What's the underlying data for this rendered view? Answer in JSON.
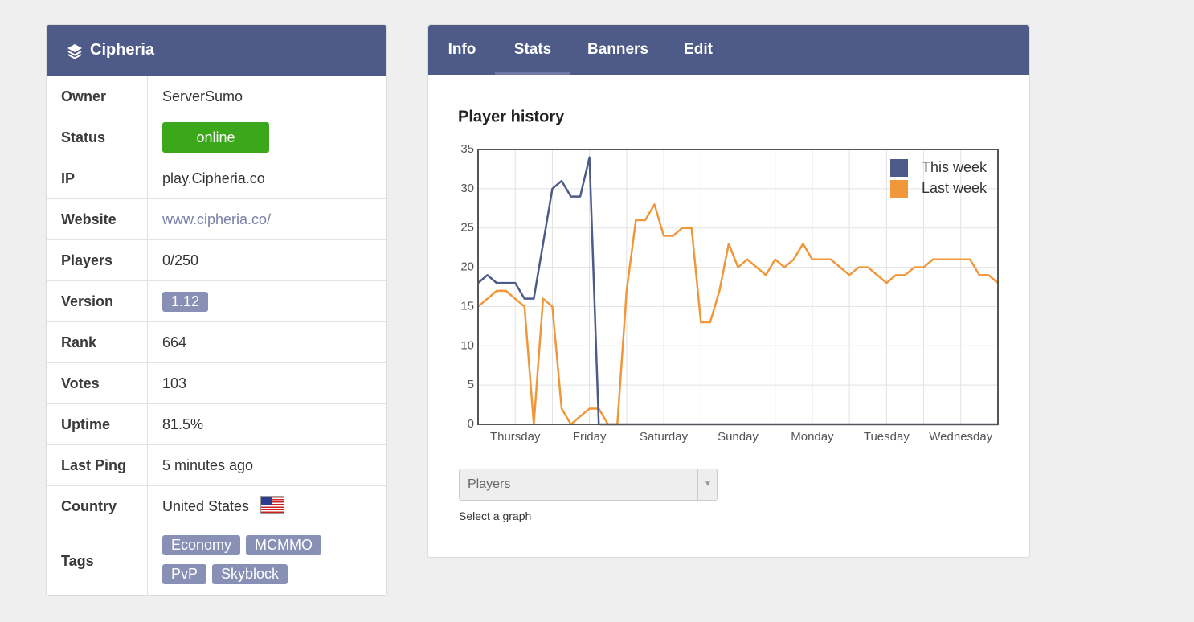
{
  "sidebar": {
    "title": "Cipheria",
    "rows": [
      [
        "Owner",
        "ServerSumo"
      ],
      [
        "Status",
        "online"
      ],
      [
        "IP",
        "play.Cipheria.co"
      ],
      [
        "Website",
        "www.cipheria.co/"
      ],
      [
        "Players",
        "0/250"
      ],
      [
        "Version",
        "1.12"
      ],
      [
        "Rank",
        "664"
      ],
      [
        "Votes",
        "103"
      ],
      [
        "Uptime",
        "81.5%"
      ],
      [
        "Last Ping",
        "5 minutes ago"
      ],
      [
        "Country",
        "United States"
      ]
    ],
    "tags_label": "Tags",
    "tags": [
      "Economy",
      "MCMMO",
      "PvP",
      "Skyblock"
    ]
  },
  "tabs": {
    "items": [
      "Info",
      "Stats",
      "Banners",
      "Edit"
    ],
    "active": 1
  },
  "select": {
    "value": "Players",
    "caption": "Select a graph"
  },
  "chart_data": {
    "type": "line",
    "title": "Player history",
    "categories": [
      null,
      null,
      null,
      null,
      "Thursday",
      null,
      null,
      null,
      null,
      null,
      null,
      null,
      "Friday",
      null,
      null,
      null,
      null,
      null,
      null,
      null,
      "Saturday",
      null,
      null,
      null,
      null,
      null,
      null,
      null,
      "Sunday",
      null,
      null,
      null,
      null,
      null,
      null,
      null,
      "Monday",
      null,
      null,
      null,
      null,
      null,
      null,
      null,
      "Tuesday",
      null,
      null,
      null,
      null,
      null,
      null,
      null,
      "Wednesday",
      null,
      null,
      null,
      null
    ],
    "series": [
      {
        "name": "This week",
        "color": "#4e5a87",
        "values": [
          18,
          19,
          18,
          18,
          18,
          16,
          16,
          23,
          30,
          31,
          29,
          29,
          34,
          0,
          0,
          0,
          0,
          0,
          0,
          0,
          0,
          0,
          0,
          0,
          0,
          0,
          0,
          0,
          0,
          0,
          0,
          0,
          0,
          0,
          0,
          0,
          0,
          0,
          0,
          0,
          0,
          0,
          0,
          0,
          0,
          0,
          0,
          0,
          0,
          0,
          0,
          0,
          0,
          0,
          0,
          0,
          0
        ]
      },
      {
        "name": "Last week",
        "color": "#f0973a",
        "values": [
          15,
          16,
          17,
          17,
          16,
          15,
          0,
          16,
          15,
          2,
          0,
          1,
          2,
          2,
          0,
          0,
          17,
          26,
          26,
          28,
          24,
          24,
          25,
          25,
          13,
          13,
          17,
          23,
          20,
          21,
          20,
          19,
          21,
          20,
          21,
          23,
          21,
          21,
          21,
          20,
          19,
          20,
          20,
          19,
          18,
          19,
          19,
          20,
          20,
          21,
          21,
          21,
          21,
          21,
          19,
          19,
          18
        ]
      }
    ],
    "ylim": [
      0,
      35
    ],
    "yticks": [
      0,
      5,
      10,
      15,
      20,
      25,
      30,
      35
    ],
    "grid": true,
    "legend": "upper right"
  }
}
